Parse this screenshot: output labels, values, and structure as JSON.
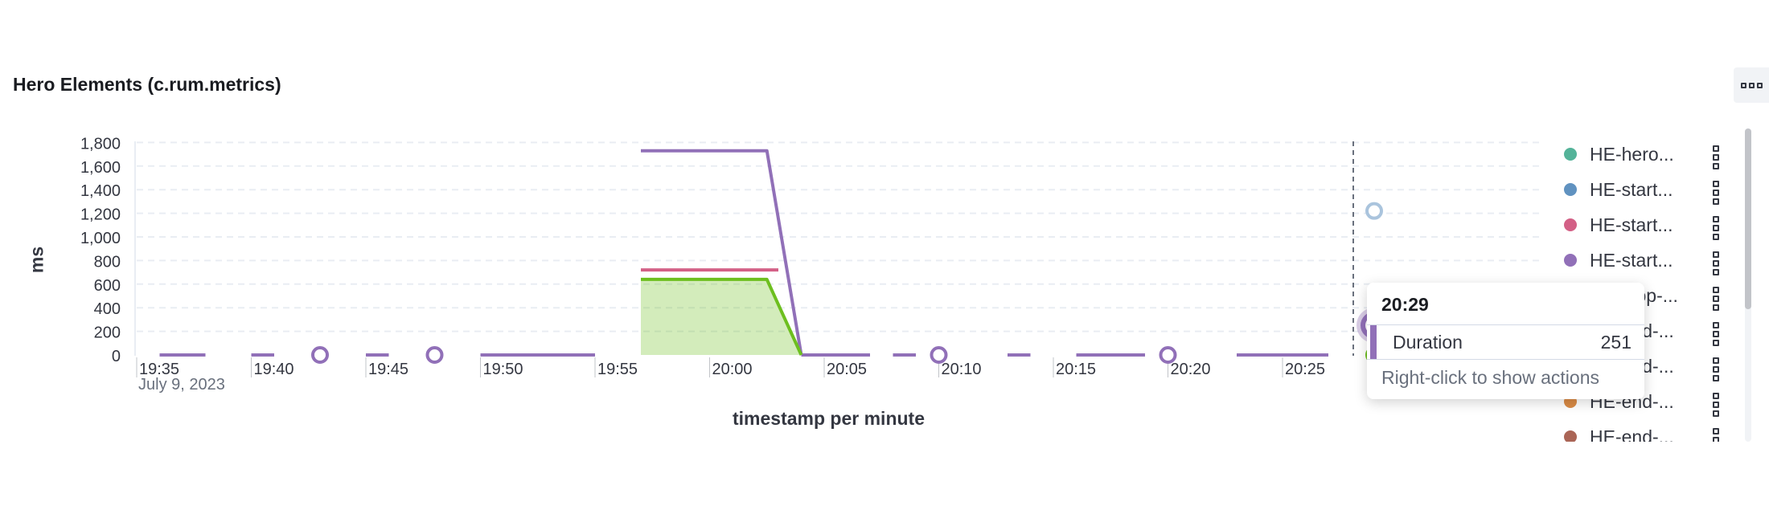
{
  "panel": {
    "title": "Hero Elements (c.rum.metrics)",
    "menu_icon": "boxes-horizontal-icon"
  },
  "chart_data": {
    "type": "line",
    "ylabel": "ms",
    "xlabel": "timestamp per minute",
    "date_label": "July 9, 2023",
    "y_ticks": [
      "1,800",
      "1,600",
      "1,400",
      "1,200",
      "1,000",
      "800",
      "600",
      "400",
      "200",
      "0"
    ],
    "y_tick_values": [
      1800,
      1600,
      1400,
      1200,
      1000,
      800,
      600,
      400,
      200,
      0
    ],
    "x_ticks": [
      "19:35",
      "19:40",
      "19:45",
      "19:50",
      "19:55",
      "20:00",
      "20:05",
      "20:10",
      "20:15",
      "20:20",
      "20:25"
    ],
    "x_tick_minutes": [
      0,
      5,
      10,
      15,
      20,
      25,
      30,
      35,
      40,
      45,
      50
    ],
    "ylim": [
      0,
      1800
    ],
    "xlim": [
      "19:35",
      "20:29"
    ],
    "grid": true,
    "legend_position": "right",
    "colors": {
      "purple": "#9170b8",
      "pink": "#d36086",
      "green": "#54b399",
      "bright_green": "#6dbf1f",
      "blue": "#6092c0",
      "light_blue": "#aac4dd"
    },
    "series": [
      {
        "name": "HE-start...",
        "color": "#9170b8",
        "segments": [
          {
            "x": [
              "19:36",
              "19:38"
            ],
            "y": [
              0,
              0
            ]
          },
          {
            "x": [
              "19:40",
              "19:41"
            ],
            "y": [
              0,
              0
            ]
          },
          {
            "x": [
              "19:45",
              "19:46"
            ],
            "y": [
              0,
              0
            ]
          },
          {
            "x": [
              "19:50",
              "19:55"
            ],
            "y": [
              0,
              0
            ]
          },
          {
            "x": [
              "19:57",
              "20:02.5",
              "20:04"
            ],
            "y": [
              1730,
              1730,
              0
            ]
          },
          {
            "x": [
              "20:04",
              "20:07"
            ],
            "y": [
              0,
              0
            ]
          },
          {
            "x": [
              "20:08",
              "20:09"
            ],
            "y": [
              0,
              0
            ]
          },
          {
            "x": [
              "20:13",
              "20:14"
            ],
            "y": [
              0,
              0
            ]
          },
          {
            "x": [
              "20:16",
              "20:19"
            ],
            "y": [
              0,
              0
            ]
          },
          {
            "x": [
              "20:23",
              "20:27"
            ],
            "y": [
              0,
              0
            ]
          }
        ],
        "points": [
          {
            "x": "19:43",
            "y": 0
          },
          {
            "x": "19:48",
            "y": 0
          },
          {
            "x": "20:10",
            "y": 0
          },
          {
            "x": "20:20",
            "y": 0
          },
          {
            "x": "20:29",
            "y": 251
          }
        ]
      },
      {
        "name": "HE-start...",
        "color": "#d36086",
        "segments": [
          {
            "x": [
              "19:57",
              "20:03"
            ],
            "y": [
              720,
              720
            ]
          }
        ],
        "points": []
      },
      {
        "name": "HE-hero...",
        "color": "#6dbf1f",
        "area": true,
        "segments": [
          {
            "x": [
              "19:57",
              "20:02.5",
              "20:04"
            ],
            "y": [
              640,
              640,
              0
            ]
          }
        ],
        "points": [
          {
            "x": "20:29",
            "y": 0
          }
        ]
      },
      {
        "name": "HE-start...",
        "color": "#aac4dd",
        "segments": [],
        "points": [
          {
            "x": "20:29",
            "y": 1220
          }
        ]
      }
    ]
  },
  "legend": {
    "items": [
      {
        "label": "HE-hero...",
        "color": "#54b399"
      },
      {
        "label": "HE-start...",
        "color": "#6092c0"
      },
      {
        "label": "HE-start...",
        "color": "#d36086"
      },
      {
        "label": "HE-start...",
        "color": "#9170b8"
      },
      {
        "label": "HE-stop-...",
        "color": "#ca8eae"
      },
      {
        "label": "HE-end-...",
        "color": "#d6bf57"
      },
      {
        "label": "HE-end-...",
        "color": "#b9a888"
      },
      {
        "label": "HE-end-...",
        "color": "#da8b45"
      },
      {
        "label": "HE-end-...",
        "color": "#aa6556"
      }
    ],
    "action_icon": "boxes-vertical-icon"
  },
  "tooltip": {
    "time": "20:29",
    "series_label": "Duration",
    "value": "251",
    "hint": "Right-click to show actions"
  }
}
